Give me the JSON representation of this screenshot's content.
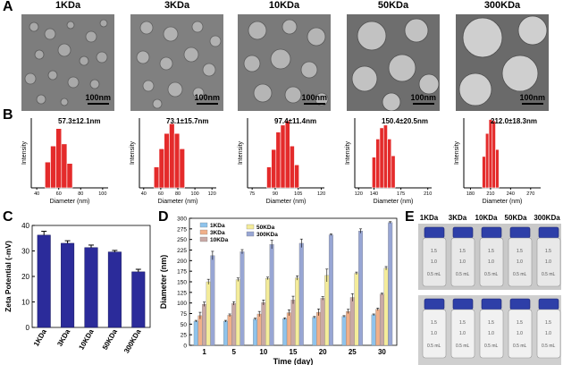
{
  "panels": {
    "a": "A",
    "b": "B",
    "c": "C",
    "d": "D",
    "e": "E"
  },
  "tem": {
    "titles": [
      "1KDa",
      "3KDa",
      "10KDa",
      "50KDa",
      "300KDa"
    ],
    "scale_label": "100nm"
  },
  "chart_data": [
    {
      "type": "bar",
      "panel": "B1",
      "annotation": "57.3±12.1nm",
      "xlabel": "Diameter (nm)",
      "ylabel": "Intensity",
      "xticks": [
        40,
        60,
        80,
        100
      ],
      "xlim": [
        35,
        105
      ],
      "x": [
        50,
        55,
        60,
        65,
        70
      ],
      "values": [
        0.37,
        0.6,
        0.85,
        0.63,
        0.35
      ]
    },
    {
      "type": "bar",
      "panel": "B2",
      "annotation": "73.1±15.7nm",
      "xlabel": "Diameter (nm)",
      "ylabel": "Intensity",
      "xticks": [
        40,
        60,
        80,
        100,
        120
      ],
      "xlim": [
        35,
        125
      ],
      "x": [
        55,
        61,
        67,
        73,
        79,
        85
      ],
      "values": [
        0.3,
        0.56,
        0.78,
        0.92,
        0.78,
        0.56
      ]
    },
    {
      "type": "bar",
      "panel": "B3",
      "annotation": "97.4±11.4nm",
      "xlabel": "Diameter (nm)",
      "ylabel": "Intensity",
      "xticks": [
        75,
        90,
        105,
        120
      ],
      "xlim": [
        72,
        122
      ],
      "x": [
        86,
        89,
        92,
        95,
        98,
        101,
        104
      ],
      "values": [
        0.3,
        0.55,
        0.8,
        0.9,
        0.96,
        0.6,
        0.33
      ]
    },
    {
      "type": "bar",
      "panel": "B4",
      "annotation": "150.4±20.5nm",
      "xlabel": "Diameter (nm)",
      "ylabel": "Intensity",
      "xticks": [
        120,
        140,
        175,
        210
      ],
      "xlim": [
        115,
        215
      ],
      "x": [
        140,
        145,
        150,
        155,
        160,
        165
      ],
      "values": [
        0.44,
        0.7,
        0.86,
        0.9,
        0.7,
        0.46
      ]
    },
    {
      "type": "bar",
      "panel": "B5",
      "annotation": "212.0±18.3nm",
      "xlabel": "Diameter (nm)",
      "ylabel": "Intensity",
      "xticks": [
        180,
        210,
        240,
        270
      ],
      "xlim": [
        170,
        285
      ],
      "x": [
        200,
        205,
        210,
        215,
        220
      ],
      "values": [
        0.45,
        0.78,
        0.98,
        0.96,
        0.55
      ]
    },
    {
      "type": "bar",
      "panel": "C",
      "ylabel": "Zeta Potential (-mV)",
      "ylim": [
        0,
        40
      ],
      "yticks": [
        0,
        10,
        20,
        30,
        40
      ],
      "categories": [
        "1KDa",
        "3KDa",
        "10KDa",
        "50KDa",
        "300KDa"
      ],
      "values": [
        36.2,
        33.0,
        31.3,
        29.6,
        21.8
      ],
      "errors": [
        1.5,
        1.0,
        1.0,
        0.6,
        1.0
      ],
      "color": "#2b2b9a"
    },
    {
      "type": "bar",
      "panel": "D",
      "xlabel": "Time (day)",
      "ylabel": "Diameter (nm)",
      "ylim": [
        0,
        300
      ],
      "yticks": [
        0,
        25,
        50,
        75,
        100,
        125,
        150,
        175,
        200,
        225,
        250,
        275,
        300
      ],
      "categories": [
        "1",
        "5",
        "10",
        "15",
        "20",
        "25",
        "30"
      ],
      "series": [
        {
          "name": "1KDa",
          "color": "#8fc3ec",
          "values": [
            57,
            57,
            62,
            63,
            66,
            68,
            72
          ],
          "errors": [
            2,
            2,
            2,
            2,
            2,
            2,
            2
          ]
        },
        {
          "name": "3KDa",
          "color": "#f0b08a",
          "values": [
            70,
            71,
            74,
            77,
            78,
            80,
            85
          ],
          "errors": [
            8,
            3,
            6,
            7,
            8,
            5,
            3
          ]
        },
        {
          "name": "10KDa",
          "color": "#c9a9a6",
          "values": [
            97,
            99,
            101,
            107,
            111,
            113,
            121
          ],
          "errors": [
            5,
            4,
            6,
            9,
            4,
            9,
            2
          ]
        },
        {
          "name": "50KDa",
          "color": "#f4ec9a",
          "values": [
            150,
            155,
            158,
            159,
            165,
            170,
            182
          ],
          "errors": [
            6,
            4,
            3,
            5,
            15,
            3,
            4
          ]
        },
        {
          "name": "300KDa",
          "color": "#98a6d4",
          "values": [
            212,
            221,
            238,
            241,
            261,
            270,
            290
          ],
          "errors": [
            10,
            5,
            10,
            10,
            2,
            5,
            2
          ]
        }
      ]
    }
  ],
  "vials": {
    "titles": [
      "1KDa",
      "3KDa",
      "10KDa",
      "50KDa",
      "300KDa"
    ],
    "marks": [
      "1.5",
      "1.0",
      "0.5 mL"
    ]
  }
}
